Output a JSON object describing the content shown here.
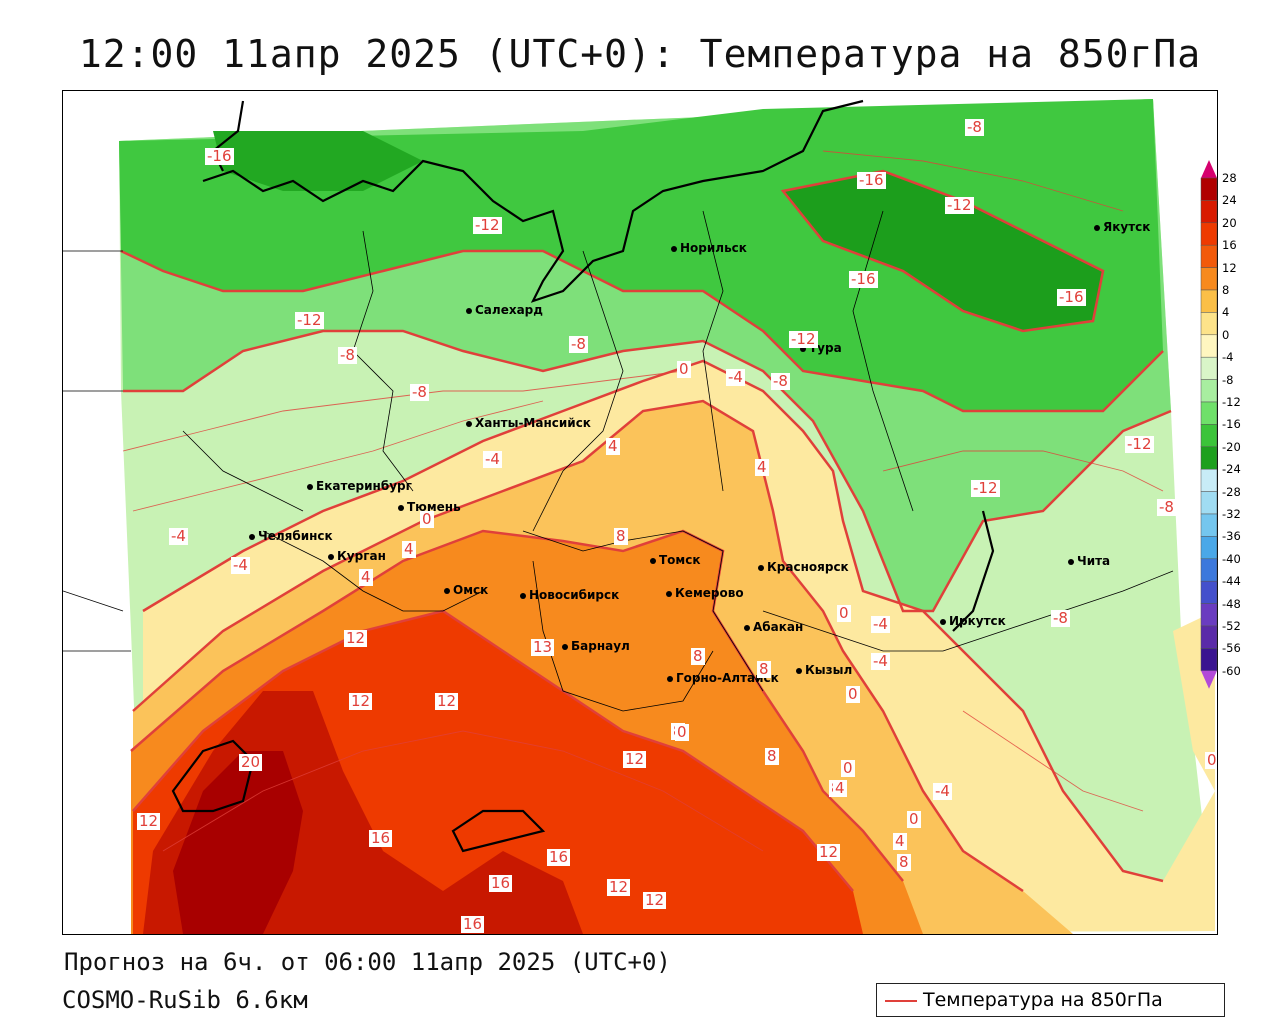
{
  "title": "12:00 11апр 2025 (UTC+0): Температура на 850гПа",
  "footer": {
    "forecast": "Прогноз на 6ч. от 06:00 11апр 2025 (UTC+0)",
    "model": "COSMO-RuSib 6.6км"
  },
  "legend": {
    "label": "Температура на 850гПа",
    "color": "#e0403a"
  },
  "colorbar": {
    "labels": [
      "28",
      "24",
      "20",
      "16",
      "12",
      "8",
      "4",
      "0",
      "-4",
      "-8",
      "-12",
      "-16",
      "-20",
      "-24",
      "-28",
      "-32",
      "-36",
      "-40",
      "-44",
      "-48",
      "-52",
      "-56",
      "-60"
    ],
    "colors": [
      "#d6006e",
      "#b00000",
      "#d81a00",
      "#ee3a00",
      "#f25a0a",
      "#f78a1e",
      "#fbbf47",
      "#fde38a",
      "#fff6c0",
      "#d9f5c8",
      "#a8eea0",
      "#6fe06a",
      "#3cc43a",
      "#1ea01e",
      "#c8ecf7",
      "#a0dcf2",
      "#74c6ee",
      "#4aa8e8",
      "#3c78dc",
      "#4450cc",
      "#6a3cc0",
      "#5a2aa8",
      "#3a1490",
      "#b24ad8"
    ]
  },
  "cities": [
    {
      "name": "Норильск"
    },
    {
      "name": "Якутск"
    },
    {
      "name": "Салехард"
    },
    {
      "name": "Тура"
    },
    {
      "name": "Ханты-Мансийск"
    },
    {
      "name": "Екатеринбург"
    },
    {
      "name": "Тюмень"
    },
    {
      "name": "Челябинск"
    },
    {
      "name": "Курган"
    },
    {
      "name": "Омск"
    },
    {
      "name": "Новосибирск"
    },
    {
      "name": "Томск"
    },
    {
      "name": "Кемерово"
    },
    {
      "name": "Красноярск"
    },
    {
      "name": "Абакан"
    },
    {
      "name": "Барнаул"
    },
    {
      "name": "Горно-Алтайск"
    },
    {
      "name": "Кызыл"
    },
    {
      "name": "Иркутск"
    },
    {
      "name": "Чита"
    }
  ],
  "contour_labels": [
    "-16",
    "-8",
    "-12",
    "-16",
    "-12",
    "-16",
    "-16",
    "-12",
    "-8",
    "-8",
    "-8",
    "-12",
    "-4",
    "-8",
    "0",
    "-4",
    "4",
    "4",
    "-12",
    "-12",
    "-8",
    "-4",
    "-4",
    "0",
    "4",
    "4",
    "8",
    "8",
    "8",
    "12",
    "12",
    "13",
    "8",
    "8",
    "0",
    "-4",
    "-4",
    "0",
    "0",
    "-8",
    "12",
    "20",
    "12",
    "12",
    "8",
    "4",
    "0",
    "-4",
    "0",
    "16",
    "16",
    "16",
    "12",
    "12",
    "12",
    "16",
    "4",
    "8",
    "0"
  ],
  "colors": {
    "contour": "#e0403a",
    "coast": "#000000",
    "border": "#000000"
  }
}
